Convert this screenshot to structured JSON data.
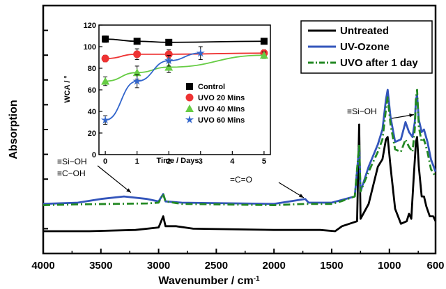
{
  "chart_data": [
    {
      "type": "line",
      "xlabel": "Wavenumber / cm",
      "xlabel_sup": "-1",
      "ylabel": "Absorption",
      "xlim": [
        4000,
        600
      ],
      "x_reversed": true,
      "ylim": [
        0,
        10
      ],
      "x_ticks": [
        "4000",
        "3500",
        "3000",
        "2500",
        "2000",
        "1500",
        "1000",
        "600"
      ],
      "legend_position": "top-right",
      "series": [
        {
          "name": "Untreated",
          "color": "#000000",
          "style": "solid",
          "points": [
            [
              4000,
              0.9
            ],
            [
              3600,
              0.9
            ],
            [
              3200,
              0.95
            ],
            [
              3000,
              1.05
            ],
            [
              2960,
              1.5
            ],
            [
              2940,
              1.1
            ],
            [
              2850,
              1.1
            ],
            [
              2700,
              1.0
            ],
            [
              2000,
              0.95
            ],
            [
              1600,
              0.95
            ],
            [
              1470,
              0.9
            ],
            [
              1410,
              1.1
            ],
            [
              1280,
              1.3
            ],
            [
              1262,
              5.2
            ],
            [
              1250,
              1.4
            ],
            [
              1180,
              2.0
            ],
            [
              1100,
              3.5
            ],
            [
              1060,
              3.8
            ],
            [
              1030,
              4.6
            ],
            [
              1015,
              4.7
            ],
            [
              990,
              3.5
            ],
            [
              950,
              1.8
            ],
            [
              900,
              1.2
            ],
            [
              850,
              1.3
            ],
            [
              830,
              1.6
            ],
            [
              810,
              1.4
            ],
            [
              790,
              3.0
            ],
            [
              770,
              4.5
            ],
            [
              760,
              4.7
            ],
            [
              745,
              3.5
            ],
            [
              720,
              2.3
            ],
            [
              700,
              2.3
            ],
            [
              680,
              1.9
            ],
            [
              650,
              1.5
            ],
            [
              620,
              1.5
            ],
            [
              600,
              1.3
            ]
          ]
        },
        {
          "name": "UV-Ozone",
          "color": "#3355bb",
          "style": "solid",
          "points": [
            [
              4000,
              2.0
            ],
            [
              3700,
              2.05
            ],
            [
              3500,
              2.2
            ],
            [
              3300,
              2.3
            ],
            [
              3100,
              2.2
            ],
            [
              3000,
              2.1
            ],
            [
              2960,
              2.4
            ],
            [
              2940,
              2.1
            ],
            [
              2800,
              2.05
            ],
            [
              2000,
              2.0
            ],
            [
              1730,
              2.2
            ],
            [
              1700,
              2.05
            ],
            [
              1500,
              2.05
            ],
            [
              1420,
              2.15
            ],
            [
              1300,
              2.3
            ],
            [
              1262,
              4.3
            ],
            [
              1250,
              2.5
            ],
            [
              1180,
              3.5
            ],
            [
              1100,
              4.4
            ],
            [
              1060,
              5.0
            ],
            [
              1030,
              6.2
            ],
            [
              1015,
              6.6
            ],
            [
              990,
              5.5
            ],
            [
              950,
              4.5
            ],
            [
              900,
              4.6
            ],
            [
              860,
              5.3
            ],
            [
              830,
              4.9
            ],
            [
              800,
              4.7
            ],
            [
              780,
              5.3
            ],
            [
              770,
              6.2
            ],
            [
              760,
              6.4
            ],
            [
              745,
              5.4
            ],
            [
              720,
              4.9
            ],
            [
              700,
              5.0
            ],
            [
              670,
              4.5
            ],
            [
              640,
              3.8
            ],
            [
              600,
              3.3
            ]
          ]
        },
        {
          "name": "UVO after 1 day",
          "color": "#228822",
          "style": "dashdot",
          "points": [
            [
              4000,
              1.95
            ],
            [
              3700,
              1.98
            ],
            [
              3400,
              2.0
            ],
            [
              3100,
              2.02
            ],
            [
              3000,
              2.05
            ],
            [
              2960,
              2.4
            ],
            [
              2940,
              2.1
            ],
            [
              2800,
              2.0
            ],
            [
              2000,
              1.95
            ],
            [
              1730,
              2.0
            ],
            [
              1500,
              2.0
            ],
            [
              1420,
              2.1
            ],
            [
              1300,
              2.3
            ],
            [
              1262,
              4.4
            ],
            [
              1250,
              2.5
            ],
            [
              1180,
              3.3
            ],
            [
              1100,
              4.1
            ],
            [
              1060,
              4.6
            ],
            [
              1030,
              5.8
            ],
            [
              1015,
              6.3
            ],
            [
              990,
              5.2
            ],
            [
              950,
              4.2
            ],
            [
              900,
              4.1
            ],
            [
              860,
              4.6
            ],
            [
              830,
              4.3
            ],
            [
              800,
              4.1
            ],
            [
              780,
              5.0
            ],
            [
              770,
              6.3
            ],
            [
              760,
              6.6
            ],
            [
              745,
              5.1
            ],
            [
              720,
              4.5
            ],
            [
              700,
              4.6
            ],
            [
              670,
              4.1
            ],
            [
              640,
              3.4
            ],
            [
              600,
              3.1
            ]
          ]
        }
      ],
      "annotations": [
        {
          "lines": [
            "≡Si−OH",
            "≡C−OH"
          ],
          "target_x": 3300
        },
        {
          "lines": [
            "=C=O"
          ],
          "target_x": 1730
        },
        {
          "lines": [
            "≡Si−OH"
          ],
          "target_x": 860
        }
      ]
    },
    {
      "type": "line",
      "inset": true,
      "xlabel": "Time / Days",
      "ylabel": "WCA / °",
      "xlim": [
        -0.2,
        5.2
      ],
      "ylim": [
        0,
        120
      ],
      "x_ticks": [
        "0",
        "1",
        "2",
        "3",
        "4",
        "5"
      ],
      "y_ticks": [
        "0",
        "20",
        "40",
        "60",
        "80",
        "100",
        "120"
      ],
      "legend_position": "bottom-right",
      "series": [
        {
          "name": "Control",
          "color": "#000000",
          "marker": "square",
          "x": [
            0,
            1,
            2,
            5
          ],
          "y": [
            107,
            105,
            104,
            105
          ],
          "err": [
            3,
            2,
            2,
            2
          ]
        },
        {
          "name": "UVO 20 Mins",
          "color": "#ee3333",
          "marker": "circle",
          "x": [
            0,
            1,
            2,
            5
          ],
          "y": [
            89,
            93,
            93,
            94
          ],
          "err": [
            3,
            5,
            4,
            3
          ]
        },
        {
          "name": "UVO 40 Mins",
          "color": "#66cc44",
          "marker": "triangle",
          "x": [
            0,
            1,
            2,
            5
          ],
          "y": [
            68,
            76,
            81,
            92
          ],
          "err": [
            4,
            6,
            5,
            3
          ]
        },
        {
          "name": "UVO 60 Mins",
          "color": "#3366cc",
          "marker": "star",
          "x": [
            0,
            1,
            2,
            3
          ],
          "y": [
            32,
            68,
            87,
            94
          ],
          "err": [
            4,
            6,
            5,
            6
          ]
        }
      ]
    }
  ]
}
